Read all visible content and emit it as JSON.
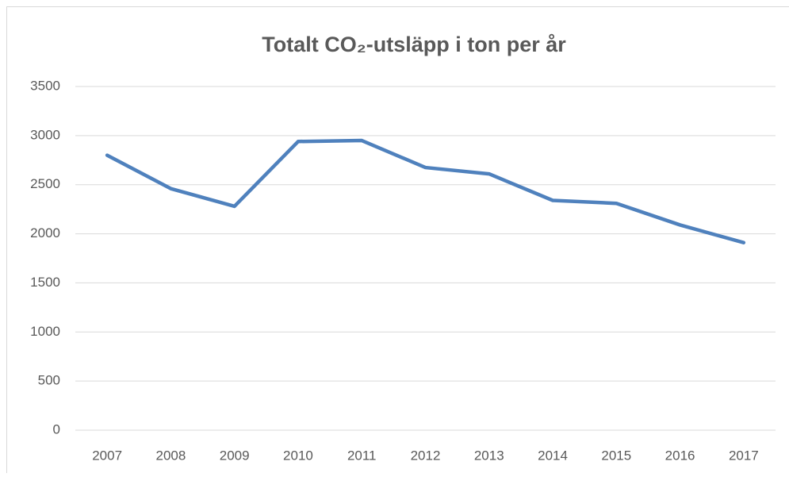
{
  "chart_data": {
    "type": "line",
    "title": "Totalt CO₂-utsläpp i ton per år",
    "categories": [
      "2007",
      "2008",
      "2009",
      "2010",
      "2011",
      "2012",
      "2013",
      "2014",
      "2015",
      "2016",
      "2017"
    ],
    "series": [
      {
        "name": "Totalt CO₂-utsläpp",
        "color": "#4f81bd",
        "values": [
          2800,
          2460,
          2280,
          2940,
          2950,
          2675,
          2610,
          2340,
          2310,
          2090,
          1910
        ]
      }
    ],
    "ylim": [
      0,
      3500
    ],
    "yticks": [
      0,
      500,
      1000,
      1500,
      2000,
      2500,
      3000,
      3500
    ],
    "grid": true,
    "legend": false
  }
}
